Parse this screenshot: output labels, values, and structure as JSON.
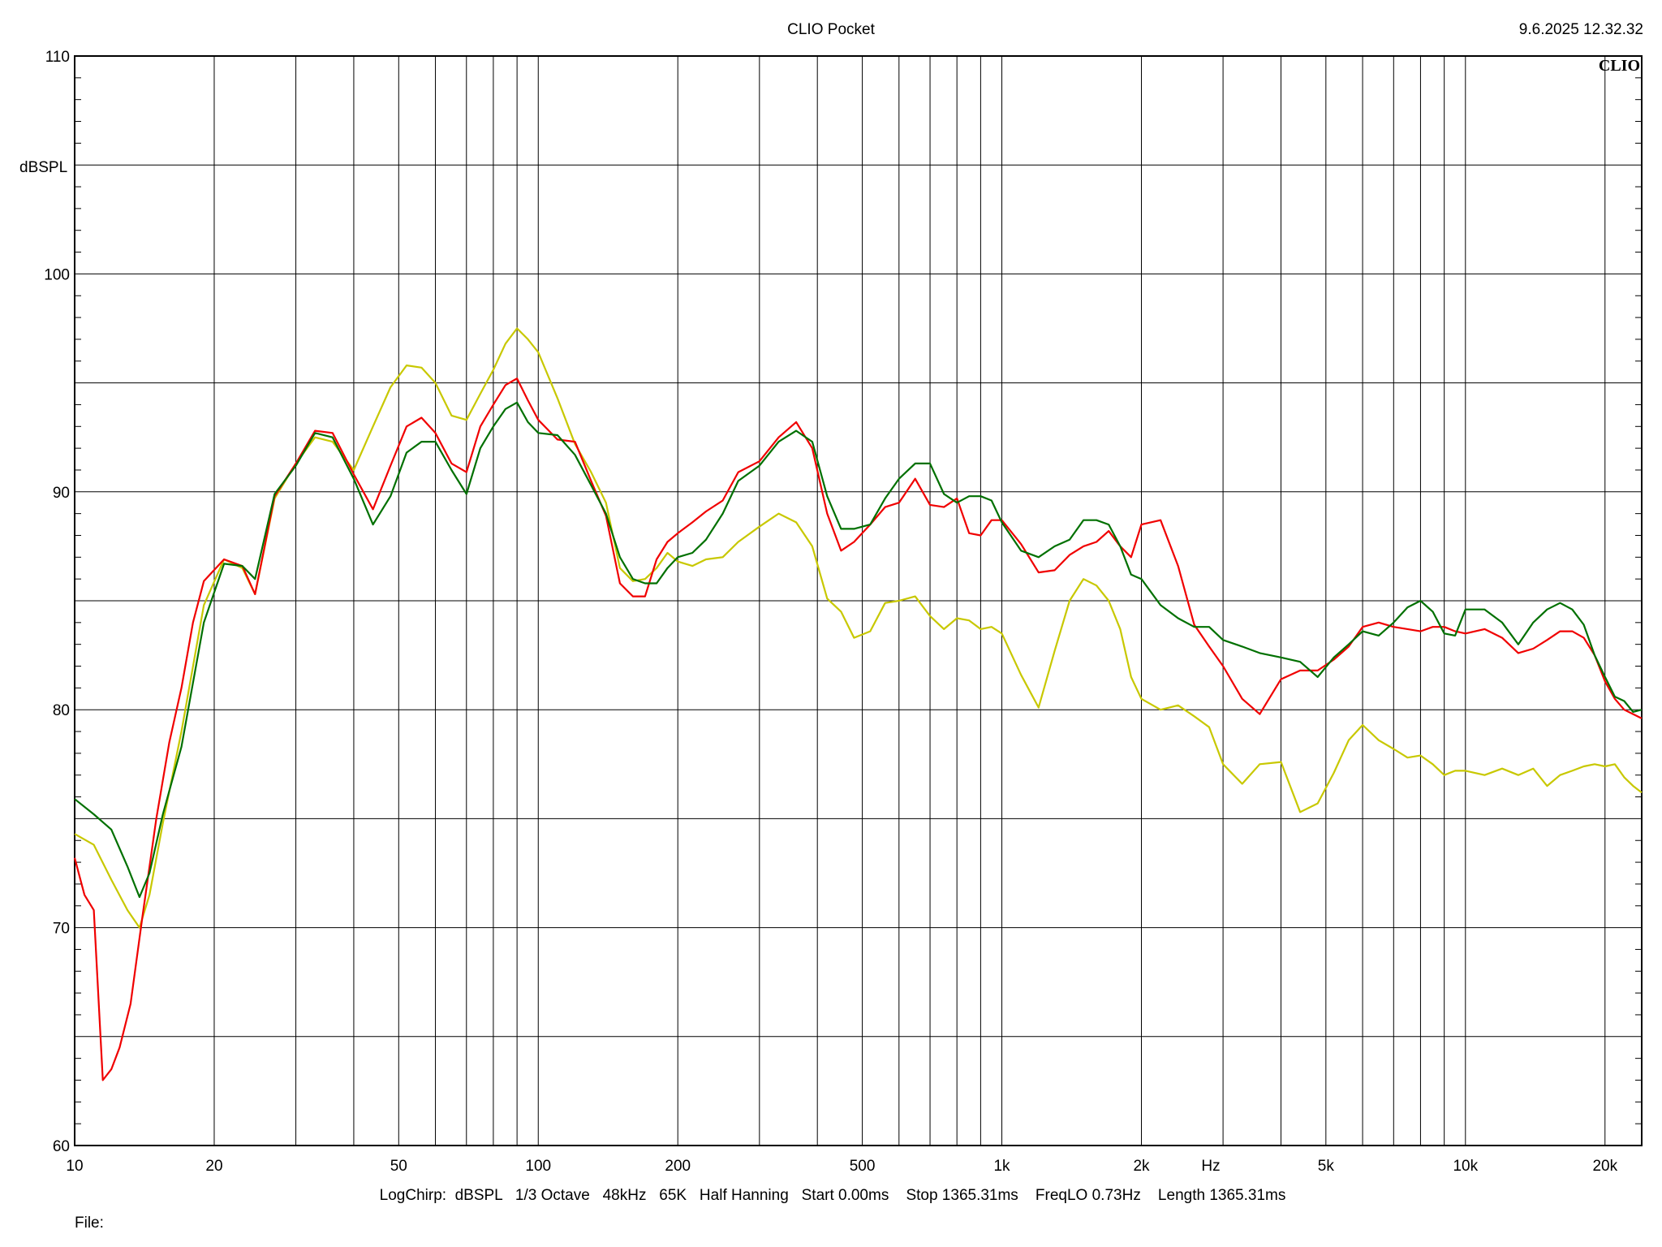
{
  "header": {
    "title": "CLIO Pocket",
    "timestamp": "9.6.2025 12.32.32",
    "brand": "CLIO"
  },
  "footer": {
    "settings_line": "LogChirp:  dBSPL   1/3 Octave   48kHz   65K   Half Hanning   Start 0.00ms    Stop 1365.31ms    FreqLO 0.73Hz    Length 1365.31ms",
    "file_label": "File:"
  },
  "chart_data": {
    "type": "line",
    "title": "CLIO Pocket",
    "xlabel": "Hz",
    "ylabel": "dBSPL",
    "xscale": "log",
    "xlim": [
      10,
      24000
    ],
    "ylim": [
      60,
      110
    ],
    "grid": true,
    "x_tick_labels": [
      {
        "value": 10,
        "label": "10"
      },
      {
        "value": 20,
        "label": "20"
      },
      {
        "value": 50,
        "label": "50"
      },
      {
        "value": 100,
        "label": "100"
      },
      {
        "value": 200,
        "label": "200"
      },
      {
        "value": 500,
        "label": "500"
      },
      {
        "value": 1000,
        "label": "1k"
      },
      {
        "value": 2000,
        "label": "2k"
      },
      {
        "value": 5000,
        "label": "5k"
      },
      {
        "value": 10000,
        "label": "10k"
      },
      {
        "value": 20000,
        "label": "20k"
      }
    ],
    "y_tick_labels": [
      {
        "value": 60,
        "label": "60"
      },
      {
        "value": 70,
        "label": "70"
      },
      {
        "value": 80,
        "label": "80"
      },
      {
        "value": 90,
        "label": "90"
      },
      {
        "value": 100,
        "label": "100"
      },
      {
        "value": 110,
        "label": "110"
      }
    ],
    "series": [
      {
        "color": "#e8e800",
        "stroke": "#c8c800",
        "x": [
          10,
          11,
          12,
          13,
          13.8,
          14.5,
          15.5,
          17,
          19,
          21,
          23,
          24.5,
          27,
          30,
          33,
          36,
          40,
          44,
          48,
          52,
          56,
          60,
          65,
          70,
          75,
          80,
          85,
          90,
          95,
          100,
          110,
          120,
          130,
          140,
          150,
          160,
          170,
          180,
          190,
          200,
          215,
          230,
          250,
          270,
          300,
          330,
          360,
          390,
          420,
          450,
          480,
          520,
          560,
          600,
          650,
          700,
          750,
          800,
          850,
          900,
          950,
          1000,
          1100,
          1200,
          1300,
          1400,
          1500,
          1600,
          1700,
          1800,
          1900,
          2000,
          2200,
          2400,
          2600,
          2800,
          3000,
          3300,
          3600,
          4000,
          4400,
          4800,
          5200,
          5600,
          6000,
          6500,
          7000,
          7500,
          8000,
          8500,
          9000,
          9500,
          10000,
          11000,
          12000,
          13000,
          14000,
          15000,
          16000,
          17000,
          18000,
          19000,
          20000,
          21000,
          22000,
          23000,
          24000
        ],
        "y": [
          74.3,
          73.8,
          72.2,
          70.8,
          70.0,
          71.5,
          74.8,
          79.0,
          84.8,
          86.9,
          86.5,
          85.3,
          89.7,
          91.3,
          92.5,
          92.3,
          91.0,
          93.0,
          94.8,
          95.8,
          95.7,
          95.0,
          93.5,
          93.3,
          94.5,
          95.6,
          96.8,
          97.5,
          97.0,
          96.4,
          94.3,
          92.2,
          90.9,
          89.5,
          86.5,
          85.9,
          86.0,
          86.5,
          87.2,
          86.8,
          86.6,
          86.9,
          87.0,
          87.7,
          88.4,
          89.0,
          88.6,
          87.5,
          85.1,
          84.5,
          83.3,
          83.6,
          84.9,
          85.0,
          85.2,
          84.3,
          83.7,
          84.2,
          84.1,
          83.7,
          83.8,
          83.5,
          81.6,
          80.1,
          82.7,
          85.0,
          86.0,
          85.7,
          85.0,
          83.7,
          81.5,
          80.5,
          80.0,
          80.2,
          79.7,
          79.2,
          77.5,
          76.6,
          77.5,
          77.6,
          75.3,
          75.7,
          77.1,
          78.6,
          79.3,
          78.6,
          78.2,
          77.8,
          77.9,
          77.5,
          77.0,
          77.2,
          77.2,
          77.0,
          77.3,
          77.0,
          77.3,
          76.5,
          77.0,
          77.2,
          77.4,
          77.5,
          77.4,
          77.5,
          76.9,
          76.5,
          76.2
        ]
      },
      {
        "color": "#ff0000",
        "stroke": "#f00000",
        "x": [
          10,
          10.5,
          11,
          11.5,
          12,
          12.5,
          13.2,
          14,
          15,
          16,
          17,
          18,
          19,
          21,
          23,
          24.5,
          27,
          30,
          33,
          36,
          40,
          44,
          48,
          52,
          56,
          60,
          65,
          70,
          75,
          80,
          85,
          90,
          95,
          100,
          110,
          120,
          130,
          140,
          150,
          160,
          170,
          180,
          190,
          200,
          215,
          230,
          250,
          270,
          300,
          330,
          360,
          390,
          420,
          450,
          480,
          520,
          560,
          600,
          650,
          700,
          750,
          800,
          850,
          900,
          950,
          1000,
          1100,
          1200,
          1300,
          1400,
          1500,
          1600,
          1700,
          1800,
          1900,
          2000,
          2200,
          2400,
          2600,
          2800,
          3000,
          3300,
          3600,
          4000,
          4400,
          4800,
          5200,
          5600,
          6000,
          6500,
          7000,
          7500,
          8000,
          8500,
          9000,
          9500,
          10000,
          11000,
          12000,
          13000,
          14000,
          15000,
          16000,
          17000,
          18000,
          19000,
          20000,
          21000,
          22000,
          23000,
          24000
        ],
        "y": [
          73.2,
          71.5,
          70.8,
          63.0,
          63.5,
          64.5,
          66.5,
          70.5,
          75.0,
          78.5,
          81.0,
          84.0,
          85.9,
          86.9,
          86.6,
          85.3,
          89.8,
          91.3,
          92.8,
          92.7,
          90.8,
          89.2,
          91.2,
          93.0,
          93.4,
          92.7,
          91.3,
          90.9,
          93.0,
          94.0,
          94.9,
          95.2,
          94.2,
          93.3,
          92.4,
          92.3,
          90.5,
          88.9,
          85.8,
          85.2,
          85.2,
          86.9,
          87.7,
          88.1,
          88.6,
          89.1,
          89.6,
          90.9,
          91.4,
          92.5,
          93.2,
          92.0,
          89.0,
          87.3,
          87.7,
          88.5,
          89.3,
          89.5,
          90.6,
          89.4,
          89.3,
          89.7,
          88.1,
          88.0,
          88.7,
          88.7,
          87.6,
          86.3,
          86.4,
          87.1,
          87.5,
          87.7,
          88.2,
          87.5,
          87.0,
          88.5,
          88.7,
          86.6,
          83.9,
          82.9,
          82.0,
          80.5,
          79.8,
          81.4,
          81.8,
          81.8,
          82.3,
          82.9,
          83.8,
          84.0,
          83.8,
          83.7,
          83.6,
          83.8,
          83.8,
          83.6,
          83.5,
          83.7,
          83.3,
          82.6,
          82.8,
          83.2,
          83.6,
          83.6,
          83.3,
          82.5,
          81.3,
          80.5,
          80.0,
          79.8,
          79.6
        ]
      },
      {
        "color": "#008000",
        "stroke": "#007000",
        "x": [
          10,
          11,
          12,
          13,
          13.8,
          14.5,
          15.5,
          17,
          19,
          21,
          23,
          24.5,
          27,
          30,
          33,
          36,
          40,
          44,
          48,
          52,
          56,
          60,
          65,
          70,
          75,
          80,
          85,
          90,
          95,
          100,
          110,
          120,
          130,
          140,
          150,
          160,
          170,
          180,
          190,
          200,
          215,
          230,
          250,
          270,
          300,
          330,
          360,
          390,
          420,
          450,
          480,
          520,
          560,
          600,
          650,
          700,
          750,
          800,
          850,
          900,
          950,
          1000,
          1100,
          1200,
          1300,
          1400,
          1500,
          1600,
          1700,
          1800,
          1900,
          2000,
          2200,
          2400,
          2600,
          2800,
          3000,
          3300,
          3600,
          4000,
          4400,
          4800,
          5200,
          5600,
          6000,
          6500,
          7000,
          7500,
          8000,
          8500,
          9000,
          9500,
          10000,
          11000,
          12000,
          13000,
          14000,
          15000,
          16000,
          17000,
          18000,
          19000,
          20000,
          21000,
          22000,
          23000,
          24000
        ],
        "y": [
          75.9,
          75.2,
          74.5,
          72.8,
          71.4,
          72.5,
          75.2,
          78.3,
          84.0,
          86.7,
          86.6,
          86.0,
          89.9,
          91.2,
          92.7,
          92.5,
          90.6,
          88.5,
          89.8,
          91.8,
          92.3,
          92.3,
          91.0,
          89.9,
          92.0,
          93.0,
          93.8,
          94.1,
          93.2,
          92.7,
          92.6,
          91.7,
          90.3,
          89.0,
          87.0,
          86.0,
          85.8,
          85.8,
          86.5,
          87.0,
          87.2,
          87.8,
          89.0,
          90.5,
          91.2,
          92.3,
          92.8,
          92.3,
          89.8,
          88.3,
          88.3,
          88.5,
          89.7,
          90.6,
          91.3,
          91.3,
          89.9,
          89.5,
          89.8,
          89.8,
          89.6,
          88.6,
          87.3,
          87.0,
          87.5,
          87.8,
          88.7,
          88.7,
          88.5,
          87.5,
          86.2,
          86.0,
          84.8,
          84.2,
          83.8,
          83.8,
          83.2,
          82.9,
          82.6,
          82.4,
          82.2,
          81.5,
          82.4,
          83.0,
          83.6,
          83.4,
          84.0,
          84.7,
          85.0,
          84.5,
          83.5,
          83.4,
          84.6,
          84.6,
          84.0,
          83.0,
          84.0,
          84.6,
          84.9,
          84.6,
          83.9,
          82.5,
          81.5,
          80.6,
          80.4,
          79.9,
          80.0
        ]
      }
    ]
  }
}
